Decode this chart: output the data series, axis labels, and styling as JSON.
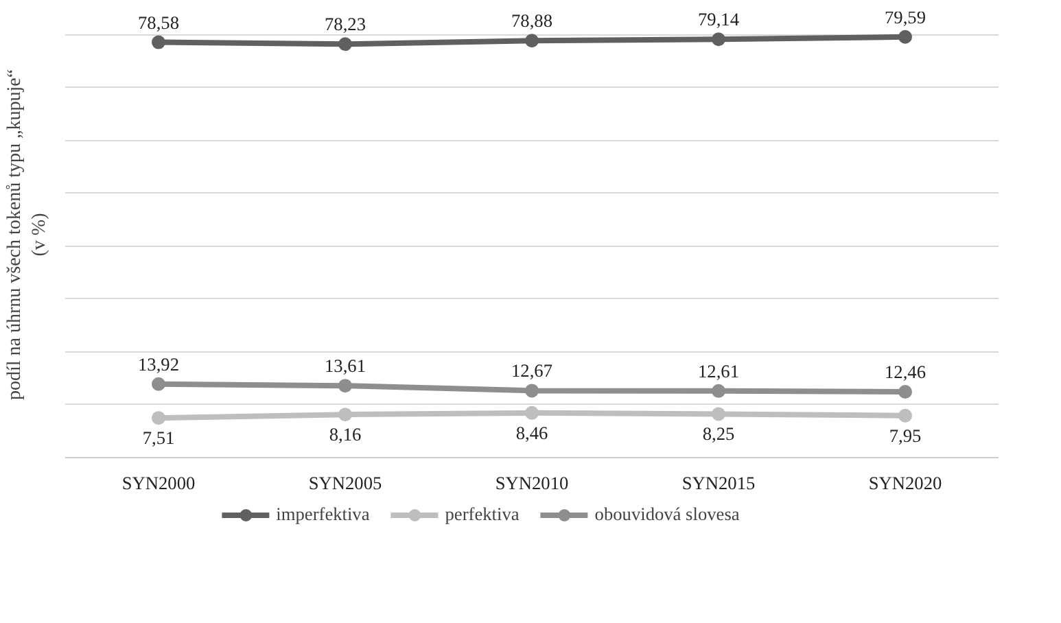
{
  "chart_data": {
    "type": "line",
    "ylabel": "podíl na úhrnu všech tokenů typu „kupuje“\n(v %)",
    "categories": [
      "SYN2000",
      "SYN2005",
      "SYN2010",
      "SYN2015",
      "SYN2020"
    ],
    "series": [
      {
        "name": "imperfektiva",
        "color": "#606060",
        "values": [
          78.58,
          78.23,
          78.88,
          79.14,
          79.59
        ],
        "value_labels": [
          "78,58",
          "78,23",
          "78,88",
          "79,14",
          "79,59"
        ]
      },
      {
        "name": "perfektiva",
        "color": "#bebebe",
        "values": [
          7.51,
          8.16,
          8.46,
          8.25,
          7.95
        ],
        "value_labels": [
          "7,51",
          "8,16",
          "8,46",
          "8,25",
          "7,95"
        ]
      },
      {
        "name": "obouvidová slovesa",
        "color": "#8e8e8e",
        "values": [
          13.92,
          13.61,
          12.67,
          12.61,
          12.46
        ],
        "value_labels": [
          "13,92",
          "13,61",
          "12,67",
          "12,61",
          "12,46"
        ]
      }
    ],
    "grid": "y",
    "legend": "bottom",
    "tick_labels": "x",
    "marker": "circle",
    "line_style": "solid"
  }
}
